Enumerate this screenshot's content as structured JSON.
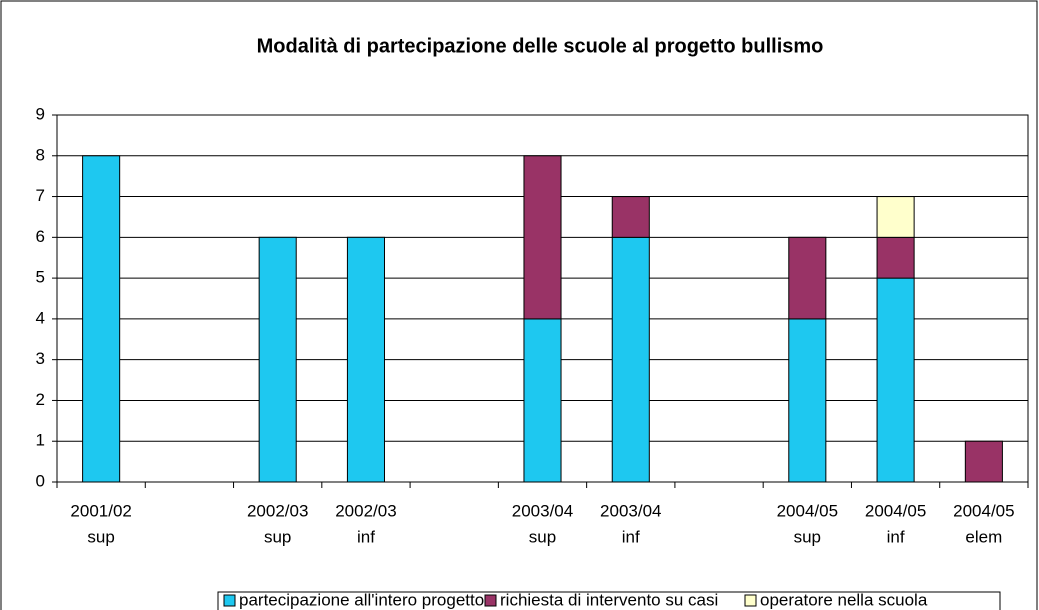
{
  "chart_data": {
    "type": "bar",
    "stacked": true,
    "title": "Modalità di partecipazione delle scuole al progetto bullismo",
    "categories": [
      [
        "2001/02",
        "sup"
      ],
      null,
      [
        "2002/03",
        "sup"
      ],
      [
        "2002/03",
        "inf"
      ],
      null,
      [
        "2003/04",
        "sup"
      ],
      [
        "2003/04",
        "inf"
      ],
      null,
      [
        "2004/05",
        "sup"
      ],
      [
        "2004/05",
        "inf"
      ],
      [
        "2004/05",
        "elem"
      ]
    ],
    "series": [
      {
        "name": "partecipazione all'intero progetto",
        "color": "#1ec8f0",
        "values": [
          8,
          null,
          6,
          6,
          null,
          4,
          6,
          null,
          4,
          5,
          null
        ]
      },
      {
        "name": "richiesta di intervento su casi",
        "color": "#993366",
        "values": [
          null,
          null,
          null,
          null,
          null,
          4,
          1,
          null,
          2,
          1,
          1
        ]
      },
      {
        "name": "operatore nella scuola",
        "color": "#ffffcc",
        "values": [
          null,
          null,
          null,
          null,
          null,
          null,
          null,
          null,
          null,
          1,
          null
        ]
      }
    ],
    "ylim": [
      0,
      9
    ],
    "yticks": [
      0,
      1,
      2,
      3,
      4,
      5,
      6,
      7,
      8,
      9
    ],
    "grid": true,
    "legend": "bottom"
  }
}
